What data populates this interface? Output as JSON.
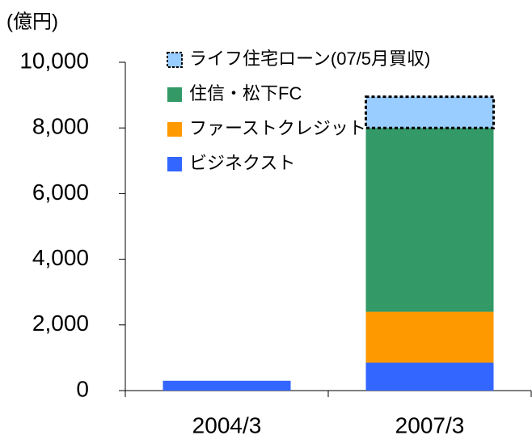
{
  "chart_data": {
    "type": "stacked_bar",
    "y_unit": "(億円)",
    "categories": [
      "2004/3",
      "2007/3"
    ],
    "series": [
      {
        "name": "ビジネクスト",
        "color": "#3366ff",
        "values": [
          300,
          850
        ]
      },
      {
        "name": "ファーストクレジット",
        "color": "#ff9900",
        "values": [
          0,
          1550
        ]
      },
      {
        "name": "住信・松下FC",
        "color": "#339966",
        "values": [
          0,
          5600
        ]
      },
      {
        "name": "ライフ住宅ローン(07/5月買収)",
        "color": "#99ccff",
        "values": [
          0,
          950
        ],
        "dashed": true
      }
    ],
    "ylim": [
      0,
      10000
    ],
    "yticks": [
      0,
      {
        "value": 2000,
        "label": "2,000"
      },
      {
        "value": 4000,
        "label": "4,000"
      },
      {
        "value": 6000,
        "label": "6,000"
      },
      {
        "value": 8000,
        "label": "8,000"
      },
      {
        "value": 10000,
        "label": "10,000"
      }
    ],
    "grid": false,
    "legend": "top"
  }
}
